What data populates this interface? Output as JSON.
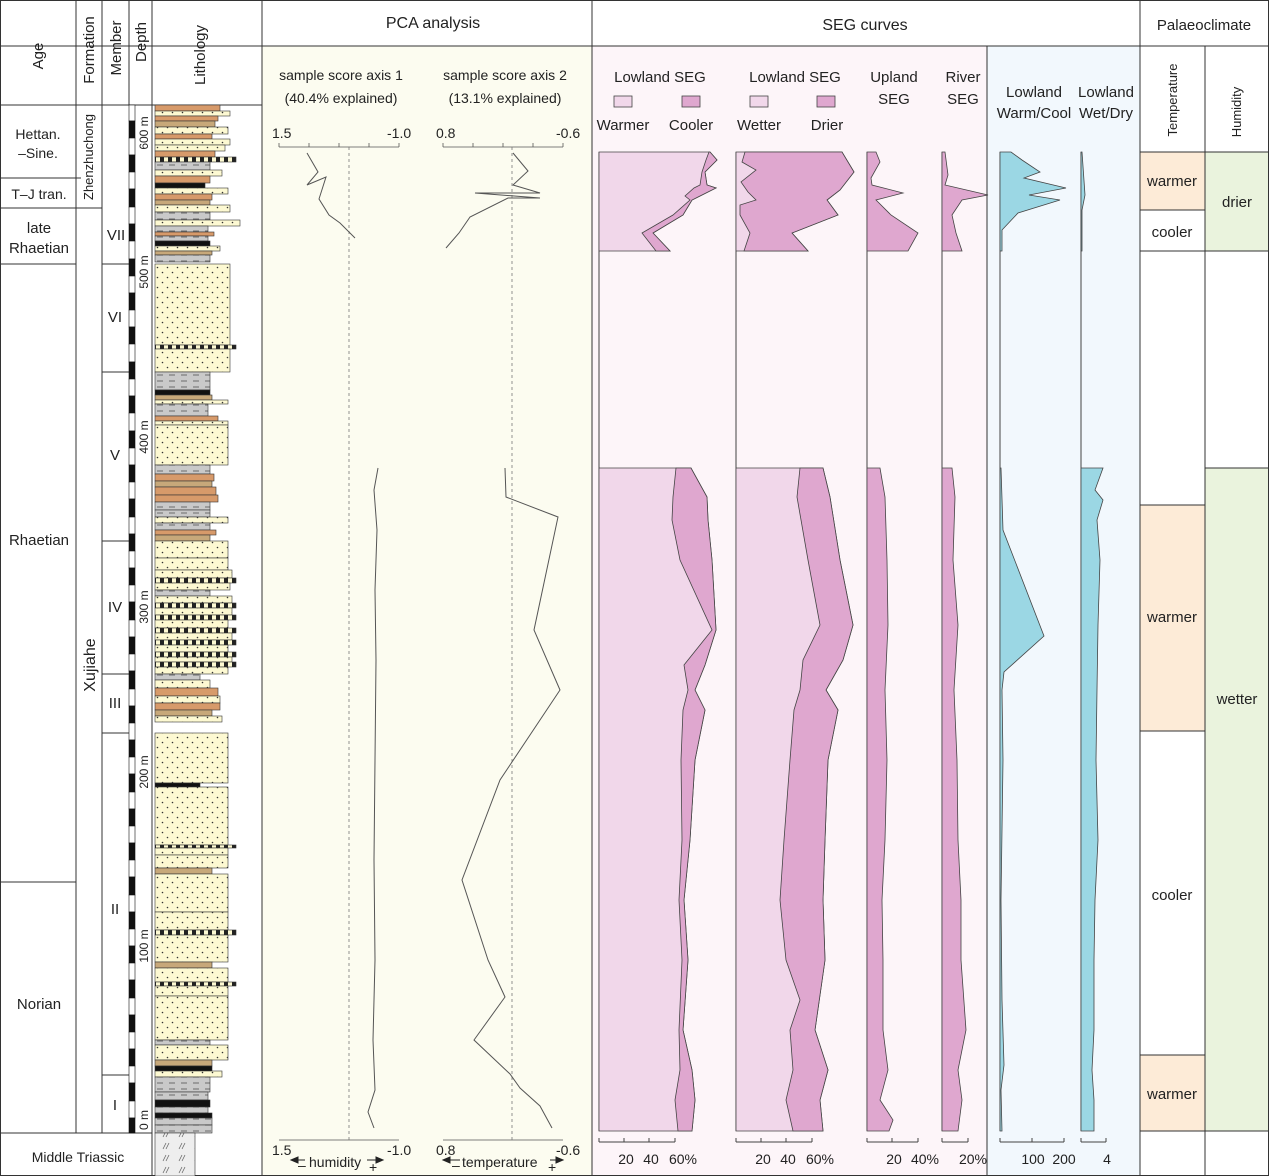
{
  "headers": {
    "age": "Age",
    "formation": "Formation",
    "member": "Member",
    "depth": "Depth",
    "lithology": "Lithology",
    "pca": "PCA analysis",
    "seg": "SEG curves",
    "palaeo": "Palaeoclimate",
    "temperature": "Temperature",
    "humidity": "Humidity"
  },
  "ages": [
    "Hettan.",
    "–Sine.",
    "T–J tran.",
    "late",
    "Rhaetian",
    "Rhaetian",
    "Norian",
    "Middle Triassic"
  ],
  "formations": [
    "Zhenzhuchong",
    "Xujiahe"
  ],
  "members": [
    "I",
    "II",
    "III",
    "IV",
    "V",
    "VI",
    "VII"
  ],
  "depth_ticks": [
    "0 m",
    "100 m",
    "200 m",
    "300 m",
    "400 m",
    "500 m",
    "600 m"
  ],
  "pca": {
    "axis1_title": "sample score axis 1",
    "axis1_expl": "(40.4% explained)",
    "axis2_title": "sample score axis 2",
    "axis2_expl": "(13.1% explained)",
    "axis1_left": "1.5",
    "axis1_right": "-1.0",
    "axis2_left": "0.8",
    "axis2_right": "-0.6",
    "humidity_label": "humidity",
    "temperature_label": "temperature",
    "minus": "–",
    "plus": "+"
  },
  "seg": {
    "lowland_seg": "Lowland SEG",
    "warmer": "Warmer",
    "cooler": "Cooler",
    "wetter": "Wetter",
    "drier": "Drier",
    "upland": "Upland",
    "river": "River",
    "seg_word": "SEG",
    "lowland": "Lowland",
    "warm_cool": "Warm/Cool",
    "wet_dry": "Wet/Dry",
    "ticks_a": [
      "20",
      "40",
      "60%"
    ],
    "ticks_b": [
      "20",
      "40",
      "60%"
    ],
    "ticks_c": [
      "20",
      "40%"
    ],
    "ticks_d": [
      "20%"
    ],
    "ticks_e": [
      "100",
      "200"
    ],
    "ticks_f": [
      "4"
    ]
  },
  "palaeo": {
    "temp": [
      "warmer",
      "cooler",
      "warmer",
      "cooler",
      "warmer"
    ],
    "hum": [
      "drier",
      "wetter"
    ]
  },
  "colors": {
    "pink_light": "#f1d7ea",
    "pink_dark": "#dfa7cf",
    "blue": "#9bd7e4",
    "bg_pca": "#fcfcf0",
    "bg_seg": "#fdf5f9",
    "bg_blue": "#f2f8fd",
    "orange_bg": "#fdebd7",
    "green_bg": "#eaf3dd"
  }
}
